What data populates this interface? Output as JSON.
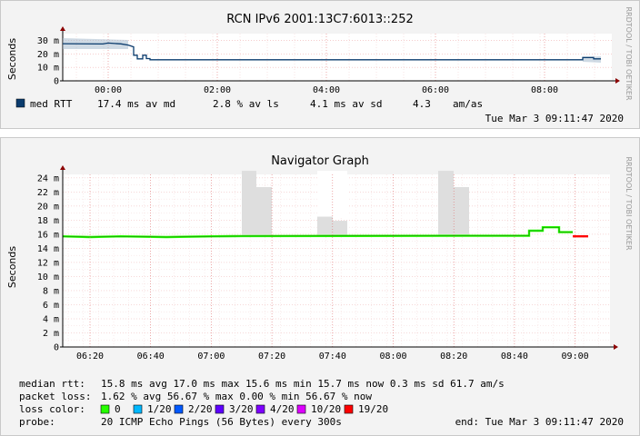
{
  "top_graph": {
    "title": "RCN IPv6 2001:13C7:6013::252",
    "ylabel": "Seconds",
    "side_label": "RRDTOOL / TOBI OETIKER",
    "y_ticks": [
      "30 m",
      "20 m",
      "10 m",
      "0"
    ],
    "x_ticks": [
      "00:00",
      "02:00",
      "04:00",
      "06:00",
      "08:00"
    ],
    "legend": {
      "swatch_color": "#0b3c6e",
      "label": "med RTT",
      "stat1": "17.4 ms av md",
      "stat2": "2.8 % av ls",
      "stat3": "4.1 ms av sd",
      "stat4": "4.3",
      "stat4_unit": "am/as"
    },
    "timestamp": "Tue Mar  3 09:11:47 2020"
  },
  "bottom_graph": {
    "title": "Navigator Graph",
    "ylabel": "Seconds",
    "side_label": "RRDTOOL / TOBI OETIKER",
    "y_ticks": [
      "24 m",
      "22 m",
      "20 m",
      "18 m",
      "16 m",
      "14 m",
      "12 m",
      "10 m",
      "8 m",
      "6 m",
      "4 m",
      "2 m",
      "0"
    ],
    "x_ticks": [
      "06:20",
      "06:40",
      "07:00",
      "07:20",
      "07:40",
      "08:00",
      "08:20",
      "08:40",
      "09:00"
    ],
    "lines": {
      "median_rtt_label": "median rtt:",
      "median_rtt_values": "15.8 ms avg   17.0 ms max   15.6 ms min   15.7 ms now   0.3 ms sd   61.7     am/s",
      "packet_loss_label": "packet loss:",
      "packet_loss_values": "1.62 % avg   56.67 % max   0.00 % min   56.67 % now",
      "loss_color_label": "loss color:",
      "probe_label": "probe:",
      "probe_values": "20 ICMP Echo Pings (56 Bytes) every 300s",
      "end_time": "end: Tue Mar  3 09:11:47 2020"
    },
    "loss_colors": [
      {
        "label": "0",
        "color": "#26ff00"
      },
      {
        "label": "1/20",
        "color": "#00b8ff"
      },
      {
        "label": "2/20",
        "color": "#0059ff"
      },
      {
        "label": "3/20",
        "color": "#5e00ff"
      },
      {
        "label": "4/20",
        "color": "#7e00ff"
      },
      {
        "label": "10/20",
        "color": "#dd00ff"
      },
      {
        "label": "19/20",
        "color": "#ff0000"
      }
    ]
  }
}
